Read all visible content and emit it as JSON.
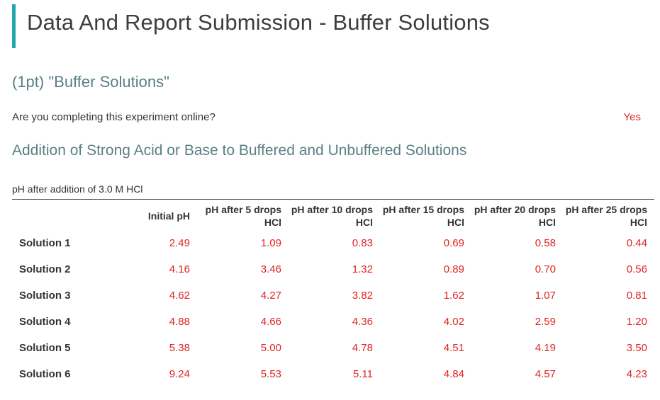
{
  "page": {
    "title": "Data And Report Submission - Buffer Solutions",
    "accent_color": "#26a7ae"
  },
  "section": {
    "title": "(1pt) \"Buffer Solutions\"",
    "question": "Are you completing this experiment online?",
    "answer": "Yes"
  },
  "subsection": {
    "title": "Addition of Strong Acid or Base to Buffered and Unbuffered Solutions"
  },
  "table": {
    "caption": "pH after addition of 3.0 M HCl",
    "columns": [
      "",
      "Initial pH",
      "pH after 5 drops HCl",
      "pH after 10 drops HCl",
      "pH after 15 drops HCl",
      "pH after 20 drops HCl",
      "pH after 25 drops HCl"
    ],
    "rows": [
      {
        "label": "Solution 1",
        "values": [
          "2.49",
          "1.09",
          "0.83",
          "0.69",
          "0.58",
          "0.44"
        ]
      },
      {
        "label": "Solution 2",
        "values": [
          "4.16",
          "3.46",
          "1.32",
          "0.89",
          "0.70",
          "0.56"
        ]
      },
      {
        "label": "Solution 3",
        "values": [
          "4.62",
          "4.27",
          "3.82",
          "1.62",
          "1.07",
          "0.81"
        ]
      },
      {
        "label": "Solution 4",
        "values": [
          "4.88",
          "4.66",
          "4.36",
          "4.02",
          "2.59",
          "1.20"
        ]
      },
      {
        "label": "Solution 5",
        "values": [
          "5.38",
          "5.00",
          "4.78",
          "4.51",
          "4.19",
          "3.50"
        ]
      },
      {
        "label": "Solution 6",
        "values": [
          "9.24",
          "5.53",
          "5.11",
          "4.84",
          "4.57",
          "4.23"
        ]
      }
    ],
    "value_color": "#e02424"
  }
}
